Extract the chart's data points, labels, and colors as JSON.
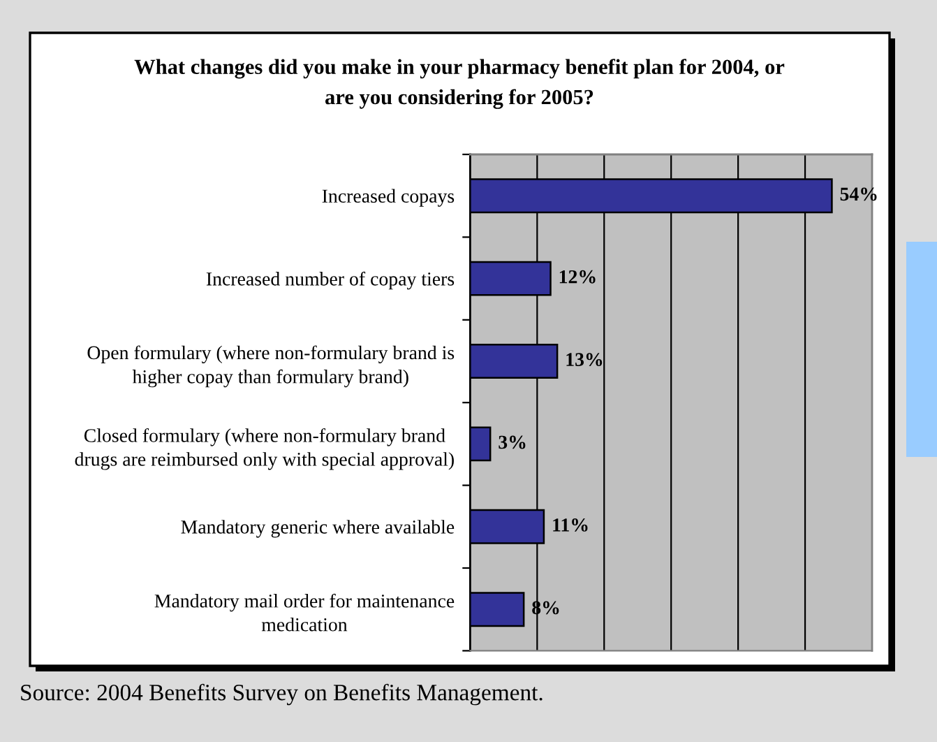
{
  "chart_data": {
    "type": "bar",
    "orientation": "horizontal",
    "title": "What changes did you make in your pharmacy benefit plan for 2004, or\nare you considering for 2005?",
    "categories": [
      "Increased copays",
      "Increased number of copay tiers",
      "Open formulary (where non-formulary brand is\nhigher copay than formulary brand)",
      "Closed formulary (where non-formulary brand\ndrugs are reimbursed only with special approval)",
      "Mandatory generic where available",
      "Mandatory mail order for maintenance\nmedication"
    ],
    "values": [
      54,
      12,
      13,
      3,
      11,
      8
    ],
    "color": "#333399",
    "value_labels": [
      "54%",
      "12%",
      "13%",
      "3%",
      "11%",
      "8%"
    ],
    "xlim": [
      0,
      60
    ],
    "xticks": [
      {
        "value": 10,
        "label": null
      },
      {
        "value": 20,
        "label": null
      },
      {
        "value": 30,
        "label": null
      },
      {
        "value": 40,
        "label": null
      },
      {
        "value": 50,
        "label": null
      }
    ],
    "grid": "x",
    "tick_labels": "y",
    "annotations": [
      "Source: 2004 Benefits Survey on Benefits Management."
    ]
  }
}
